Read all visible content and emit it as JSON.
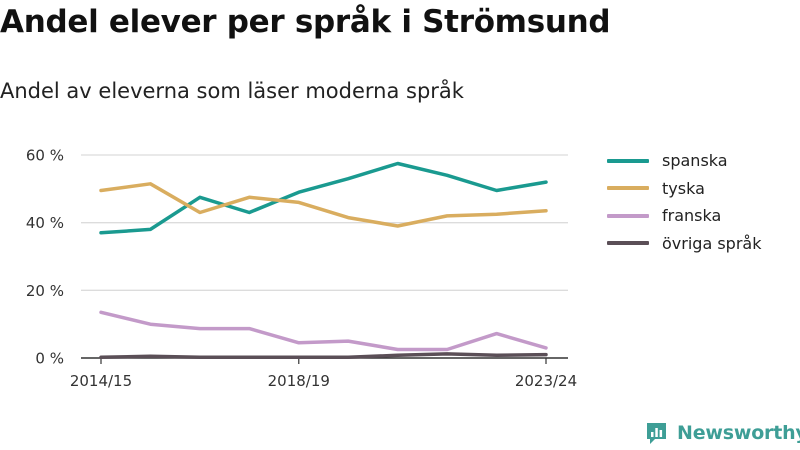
{
  "header": {
    "title": "Andel elever per språk i Strömsund",
    "subtitle": "Andel av eleverna som läser moderna språk"
  },
  "chart_data": {
    "type": "line",
    "x": [
      "2014/15",
      "2015/16",
      "2016/17",
      "2017/18",
      "2018/19",
      "2019/20",
      "2020/21",
      "2021/22",
      "2022/23",
      "2023/24"
    ],
    "x_tick_labels": [
      "2014/15",
      "2018/19",
      "2023/24"
    ],
    "y_ticks": [
      0,
      20,
      40,
      60
    ],
    "y_tick_labels": [
      "0 %",
      "20 %",
      "40 %",
      "60 %"
    ],
    "ylim": [
      0,
      60
    ],
    "grid": true,
    "legend_position": "right",
    "series": [
      {
        "name": "spanska",
        "color": "#1a9a90",
        "values": [
          37,
          38,
          47.5,
          43,
          49,
          53,
          57.5,
          54,
          49.5,
          52
        ]
      },
      {
        "name": "tyska",
        "color": "#d9ad5f",
        "values": [
          49.5,
          51.5,
          43,
          47.5,
          46,
          41.5,
          39,
          42,
          42.5,
          43.5
        ]
      },
      {
        "name": "franska",
        "color": "#c39ac9",
        "values": [
          13.5,
          10,
          8.7,
          8.7,
          4.5,
          5,
          2.5,
          2.5,
          7.2,
          3
        ]
      },
      {
        "name": "övriga språk",
        "color": "#5b4f57",
        "values": [
          0.2,
          0.5,
          0.2,
          0.2,
          0.2,
          0.2,
          0.8,
          1.2,
          0.8,
          1
        ]
      }
    ]
  },
  "brand": {
    "name": "Newsworthy",
    "color": "#3e9e96"
  }
}
